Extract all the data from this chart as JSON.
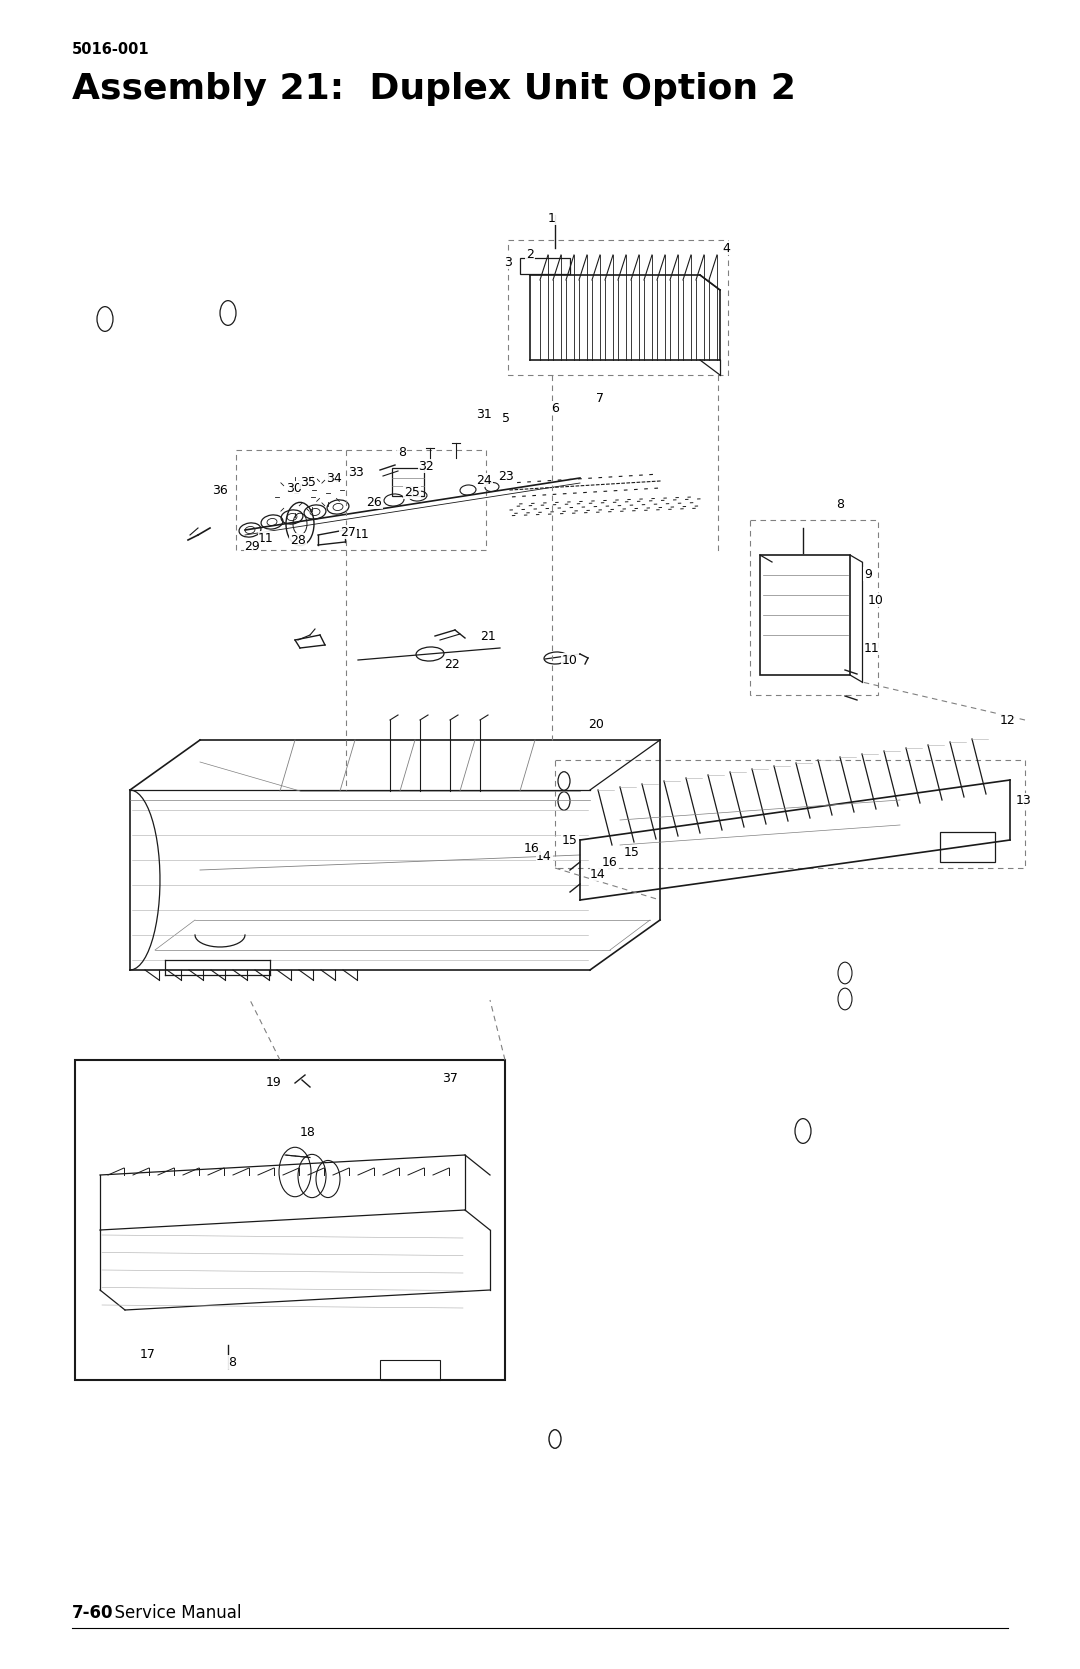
{
  "page_model": "5016-001",
  "title": "Assembly 21:  Duplex Unit Option 2",
  "footer_bold": "7-60",
  "footer_regular": "  Service Manual",
  "bg_color": "#ffffff",
  "text_color": "#000000",
  "title_fontsize": 26,
  "model_fontsize": 10.5,
  "footer_fontsize": 12,
  "dk": "#1a1a1a",
  "gray": "#808080",
  "lgray": "#aaaaaa"
}
